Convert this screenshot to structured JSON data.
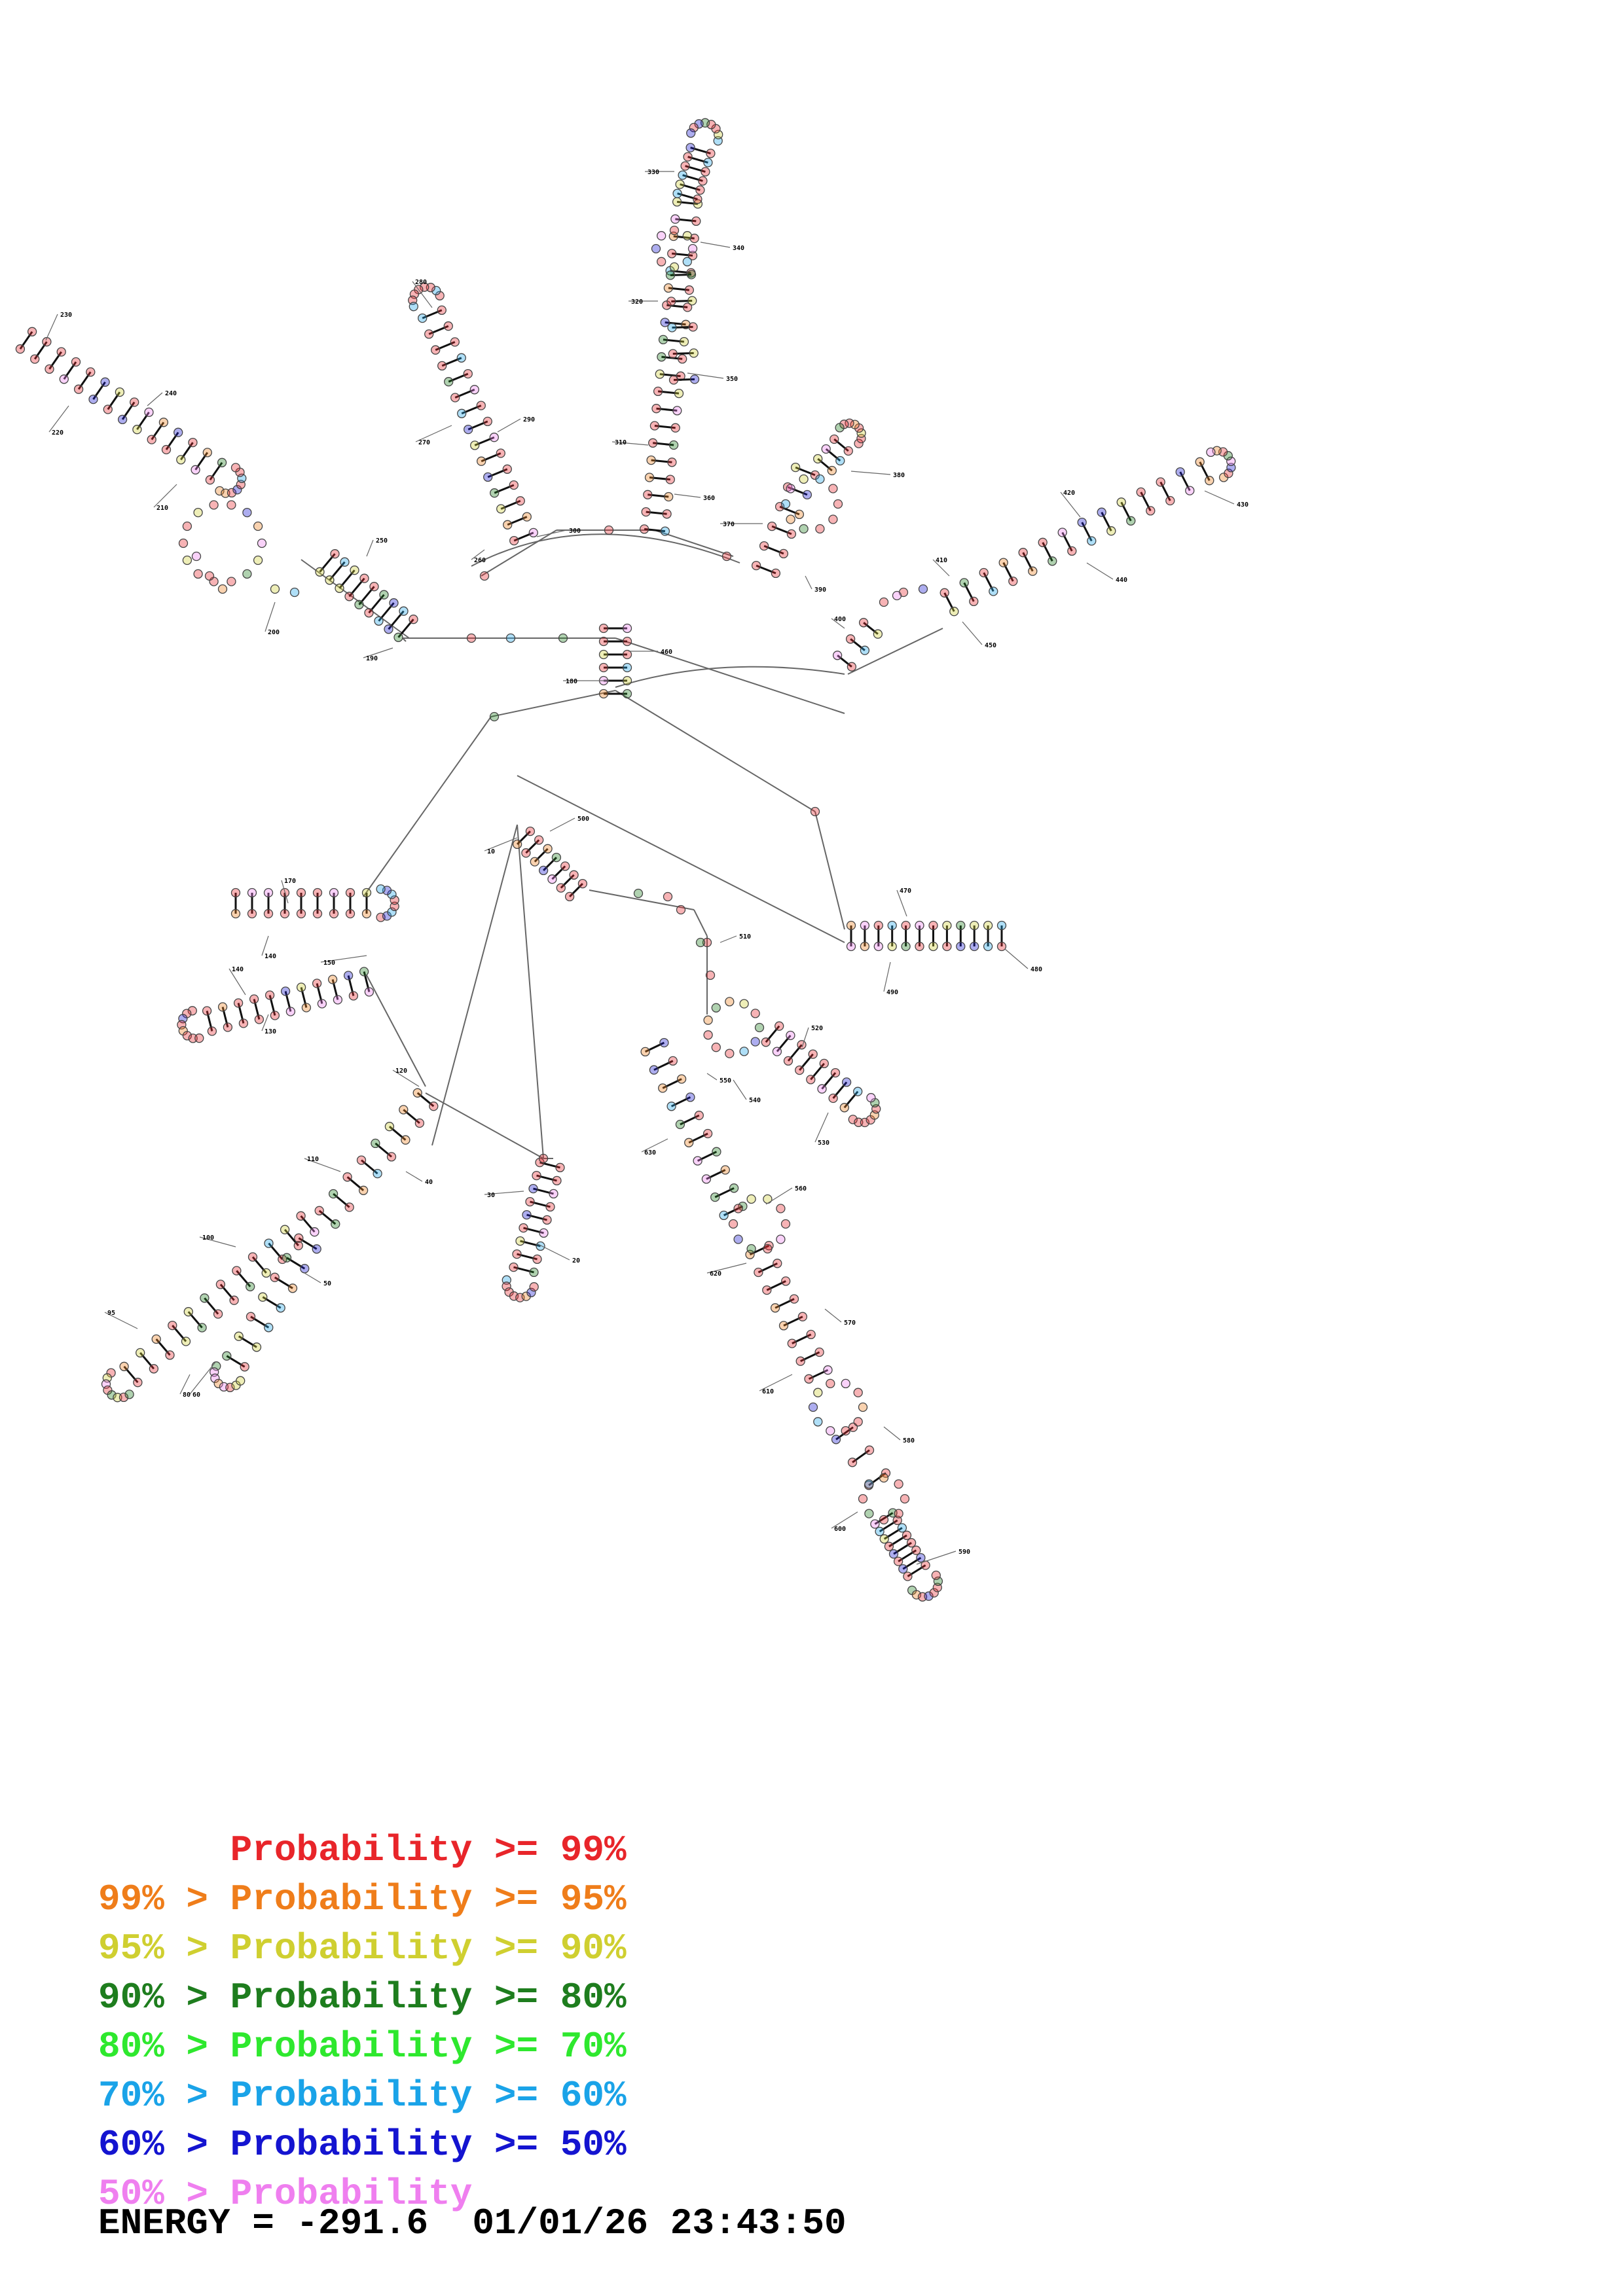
{
  "structure": {
    "position_labels": [
      "10",
      "20",
      "30",
      "40",
      "50",
      "60",
      "80",
      "95",
      "100",
      "110",
      "120",
      "130",
      "140",
      "140",
      "150",
      "170",
      "180",
      "190",
      "200",
      "210",
      "220",
      "230",
      "240",
      "250",
      "260",
      "270",
      "280",
      "290",
      "300",
      "310",
      "320",
      "330",
      "340",
      "350",
      "360",
      "370",
      "380",
      "390",
      "400",
      "410",
      "420",
      "430",
      "440",
      "450",
      "460",
      "470",
      "480",
      "490",
      "500",
      "510",
      "520",
      "530",
      "540",
      "550",
      "560",
      "570",
      "580",
      "590",
      "600",
      "610",
      "620",
      "630"
    ],
    "probability_colors": {
      "ge99": "#e8252a",
      "ge95": "#ef7d1a",
      "ge90": "#cfcf30",
      "ge80": "#1e7d1e",
      "ge70": "#2ee82e",
      "ge60": "#1aa3e8",
      "ge50": "#1414d0",
      "lt50": "#ef7fef"
    }
  },
  "legend": [
    {
      "prefix": "",
      "label": "Probability",
      "suffix": ">= 99%",
      "color": "#e8252a"
    },
    {
      "prefix": "99% >",
      "label": "Probability",
      "suffix": ">= 95%",
      "color": "#ef7d1a"
    },
    {
      "prefix": "95% >",
      "label": "Probability",
      "suffix": ">= 90%",
      "color": "#cfcf30"
    },
    {
      "prefix": "90% >",
      "label": "Probability",
      "suffix": ">= 80%",
      "color": "#1e7d1e"
    },
    {
      "prefix": "80% >",
      "label": "Probability",
      "suffix": ">= 70%",
      "color": "#2ee82e"
    },
    {
      "prefix": "70% >",
      "label": "Probability",
      "suffix": ">= 60%",
      "color": "#1aa3e8"
    },
    {
      "prefix": "60% >",
      "label": "Probability",
      "suffix": ">= 50%",
      "color": "#1414d0"
    },
    {
      "prefix": "50% >",
      "label": "Probability",
      "suffix": "",
      "color": "#ef7fef"
    }
  ],
  "footer": {
    "energy_label": "ENERGY = ",
    "energy_value": "-291.6",
    "timestamp": "01/01/26 23:43:50"
  }
}
